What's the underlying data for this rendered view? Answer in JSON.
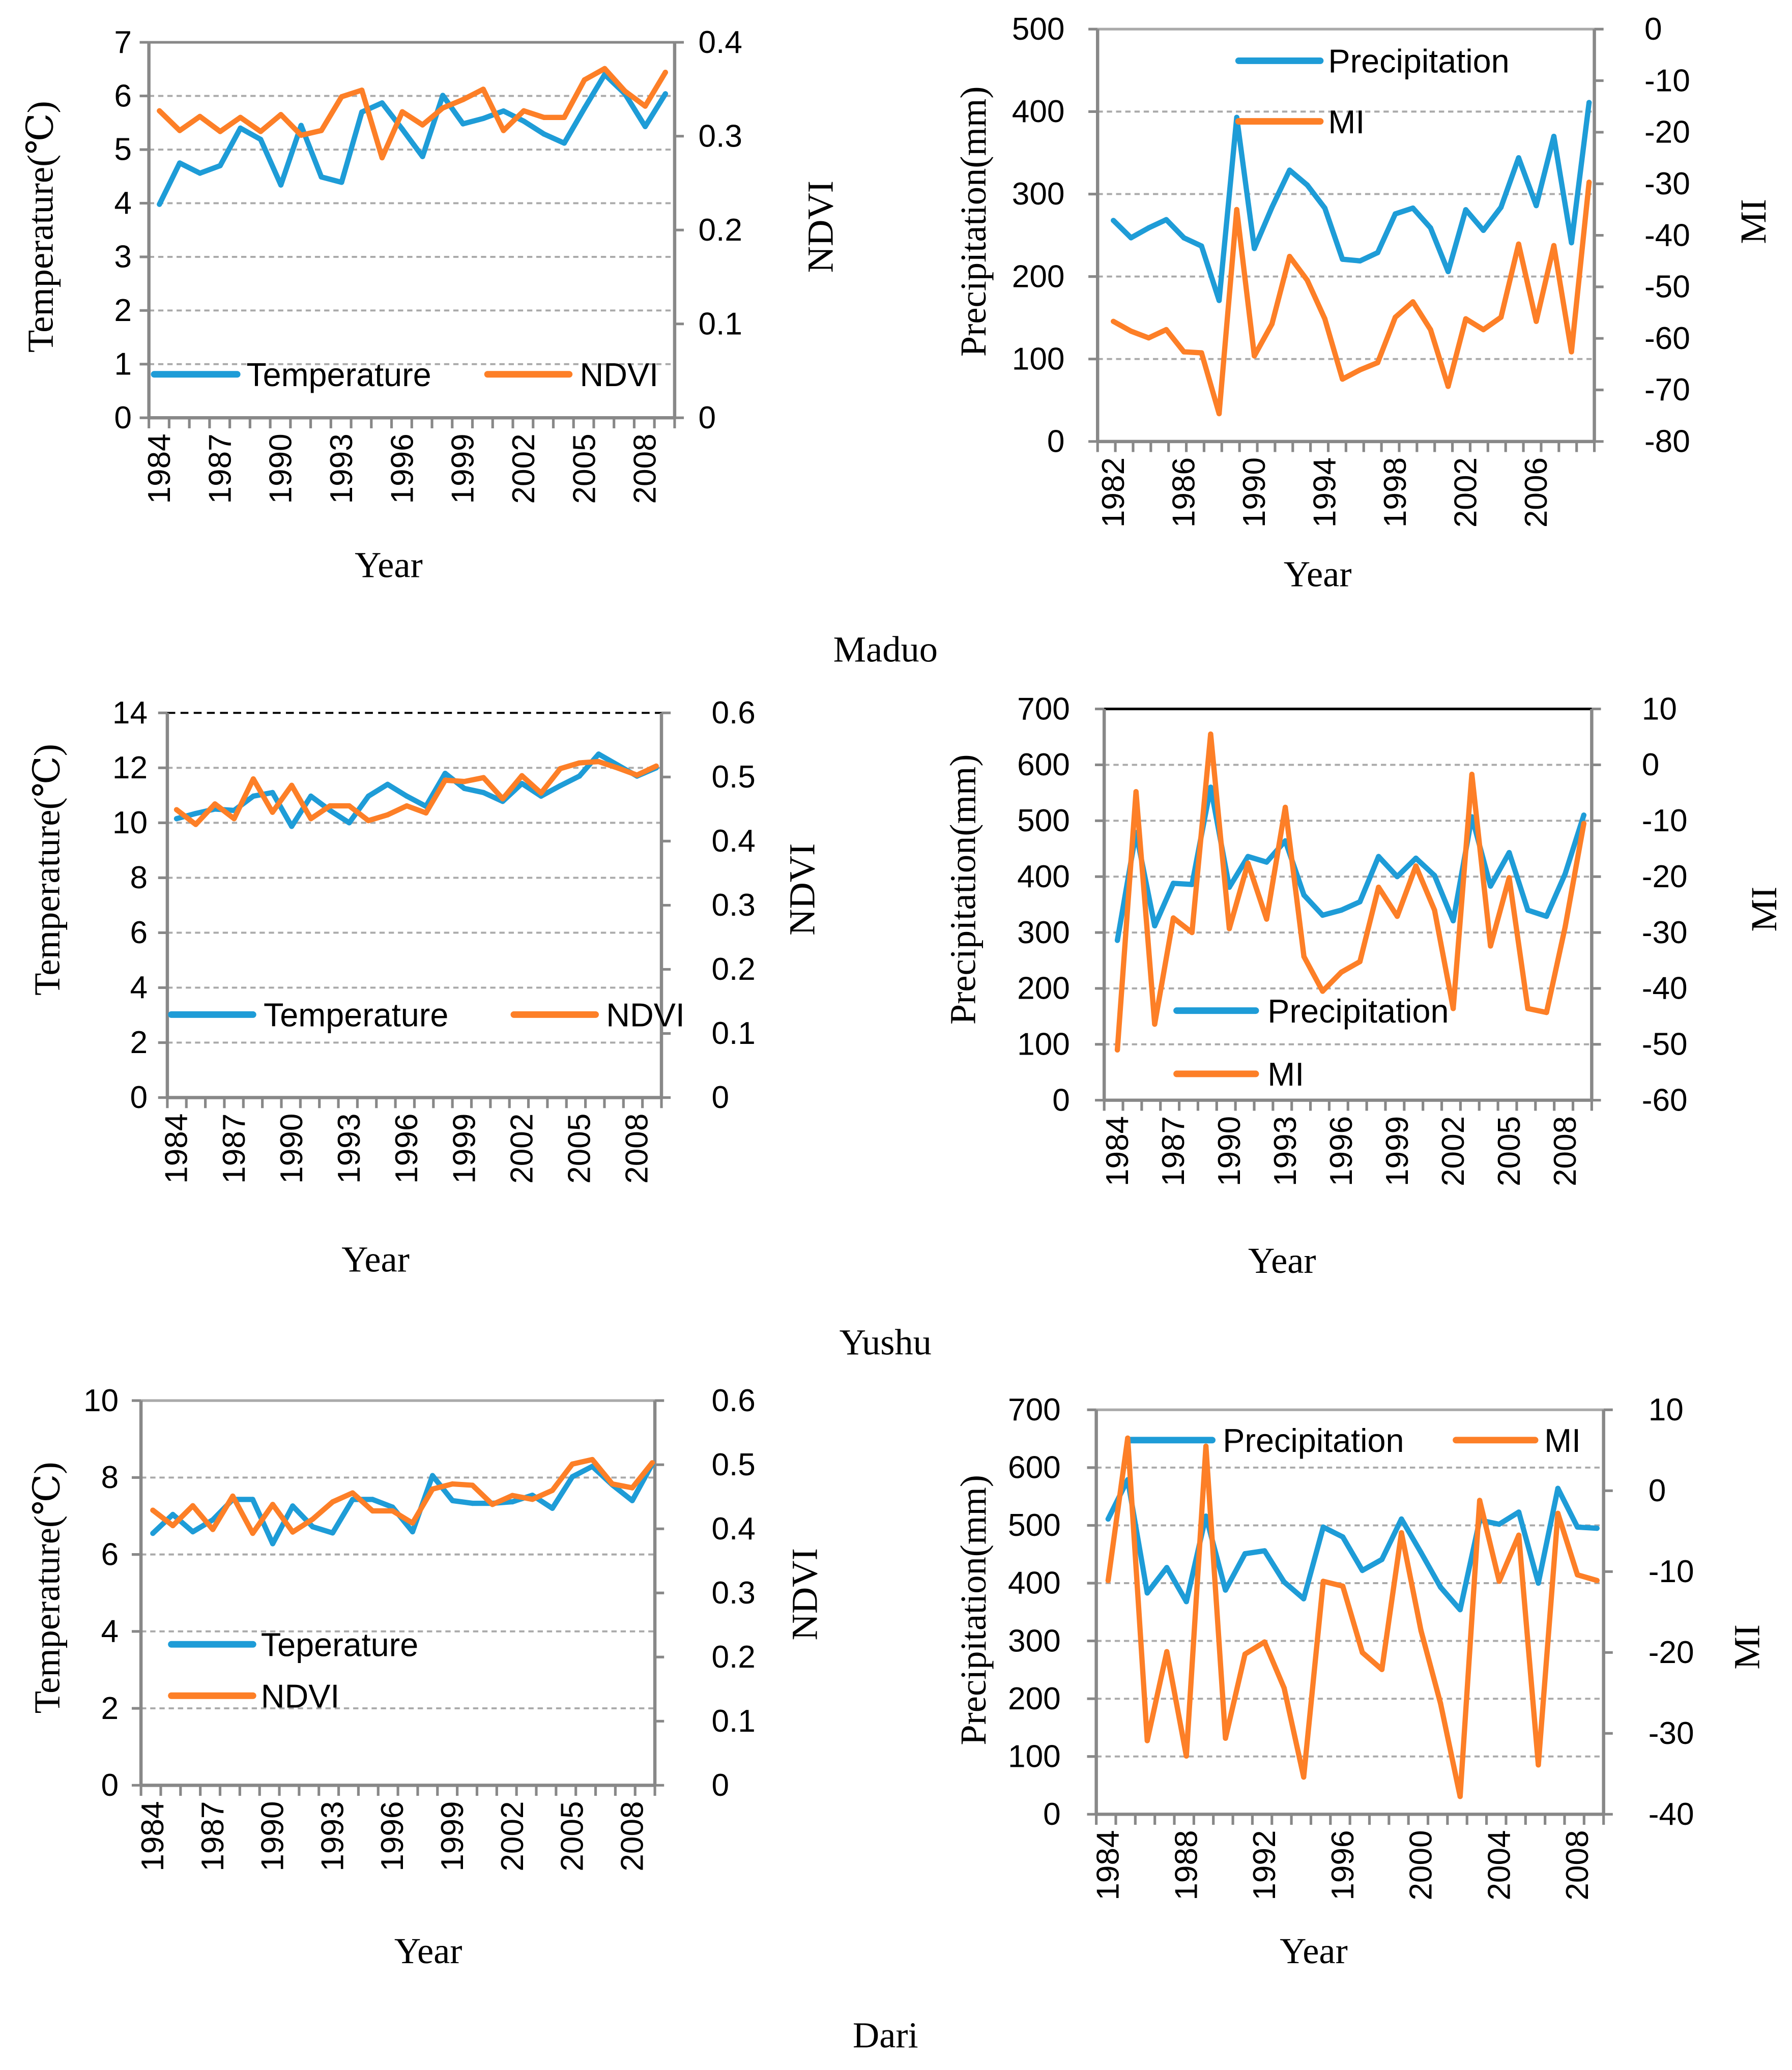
{
  "figure": {
    "captions": [
      "Maduo",
      "Yushu",
      "Dari"
    ]
  },
  "chart_data": [
    {
      "panel": "Maduo",
      "type": "line",
      "x_start": 1984,
      "x_end": 2009,
      "xlabel": "Year",
      "ylabel_left": "Temperature(℃)",
      "ylabel_right": "NDVI",
      "ylim_left": [
        0,
        7
      ],
      "ylim_right": [
        0,
        0.4
      ],
      "grid": true,
      "legend": "bottom",
      "yticks_left": [
        "0",
        "1",
        "2",
        "3",
        "4",
        "5",
        "6",
        "7"
      ],
      "yticks_right": [
        "0",
        "0.1",
        "0.2",
        "0.3",
        "0.4"
      ],
      "xtick_labels": [
        "1984",
        "1987",
        "1990",
        "1993",
        "1996",
        "1999",
        "2002",
        "2005",
        "2008"
      ],
      "series": [
        {
          "name": "Temperature",
          "axis": "left",
          "color": "#1e9cd7",
          "values": [
            3.98,
            4.75,
            4.56,
            4.7,
            5.4,
            5.19,
            4.34,
            5.45,
            4.49,
            4.39,
            5.7,
            5.87,
            5.38,
            4.87,
            6.01,
            5.48,
            5.58,
            5.72,
            5.53,
            5.29,
            5.12,
            5.77,
            6.4,
            6.04,
            5.43,
            6.04
          ]
        },
        {
          "name": "NDVI",
          "axis": "right",
          "color": "#fd7f27",
          "values": [
            0.327,
            0.306,
            0.321,
            0.305,
            0.32,
            0.305,
            0.323,
            0.301,
            0.306,
            0.342,
            0.349,
            0.277,
            0.326,
            0.312,
            0.33,
            0.339,
            0.35,
            0.306,
            0.327,
            0.32,
            0.32,
            0.36,
            0.372,
            0.348,
            0.332,
            0.368
          ]
        }
      ]
    },
    {
      "panel": "Maduo",
      "type": "line",
      "x_start": 1982,
      "x_end": 2009,
      "xlabel": "Year",
      "ylabel_left": "Precipitation(mm)",
      "ylabel_right": "MI",
      "ylim_left": [
        0,
        500
      ],
      "ylim_right": [
        -80,
        0
      ],
      "grid": true,
      "legend": "top",
      "yticks_left": [
        "0",
        "100",
        "200",
        "300",
        "400",
        "500"
      ],
      "yticks_right": [
        "-80",
        "-70",
        "-60",
        "-50",
        "-40",
        "-30",
        "-20",
        "-10",
        "0"
      ],
      "xtick_labels": [
        "1982",
        "1986",
        "1990",
        "1994",
        "1998",
        "2002",
        "2006"
      ],
      "series": [
        {
          "name": "Precipitation",
          "axis": "left",
          "color": "#1e9cd7",
          "values": [
            268,
            247,
            259,
            269,
            247,
            237,
            171,
            393,
            234,
            284,
            329,
            311,
            283,
            221,
            219,
            229,
            276,
            283,
            259,
            206,
            281,
            256,
            284,
            344,
            286,
            370,
            241,
            411
          ]
        },
        {
          "name": "MI",
          "axis": "right",
          "color": "#fd7f27",
          "values": [
            -56.7,
            -58.6,
            -59.9,
            -58.3,
            -62.6,
            -62.8,
            -74.6,
            -35,
            -63.4,
            -57.2,
            -44.1,
            -48.7,
            -56.2,
            -67.9,
            -66.1,
            -64.7,
            -55.9,
            -52.9,
            -58.3,
            -69.3,
            -56.2,
            -58.3,
            -55.9,
            -41.7,
            -56.7,
            -42,
            -62.6,
            -29.7
          ]
        }
      ]
    },
    {
      "panel": "Yushu",
      "type": "line",
      "x_start": 1984,
      "x_end": 2009,
      "xlabel": "Year",
      "ylabel_left": "Temperature(℃)",
      "ylabel_right": "NDVI",
      "ylim_left": [
        0,
        14
      ],
      "ylim_right": [
        0,
        0.6
      ],
      "grid": true,
      "legend": "bottom",
      "yticks_left": [
        "0",
        "2",
        "4",
        "6",
        "8",
        "10",
        "12",
        "14"
      ],
      "yticks_right": [
        "0",
        "0.1",
        "0.2",
        "0.3",
        "0.4",
        "0.5",
        "0.6"
      ],
      "xtick_labels": [
        "1984",
        "1987",
        "1990",
        "1993",
        "1996",
        "1999",
        "2002",
        "2005",
        "2008"
      ],
      "series": [
        {
          "name": "Temperature",
          "axis": "left",
          "color": "#1e9cd7",
          "values": [
            10.15,
            10.34,
            10.5,
            10.45,
            10.97,
            11.1,
            9.87,
            10.97,
            10.45,
            10.0,
            10.97,
            11.4,
            10.97,
            10.6,
            11.8,
            11.25,
            11.1,
            10.78,
            11.43,
            10.97,
            11.35,
            11.7,
            12.5,
            12.1,
            11.7,
            12.0
          ]
        },
        {
          "name": "NDVI",
          "axis": "right",
          "color": "#fd7f27",
          "values": [
            0.449,
            0.426,
            0.458,
            0.435,
            0.497,
            0.445,
            0.487,
            0.435,
            0.455,
            0.455,
            0.432,
            0.441,
            0.455,
            0.444,
            0.495,
            0.493,
            0.499,
            0.466,
            0.502,
            0.475,
            0.513,
            0.522,
            0.524,
            0.514,
            0.503,
            0.517
          ]
        }
      ]
    },
    {
      "panel": "Yushu",
      "type": "line",
      "x_start": 1984,
      "x_end": 2009,
      "xlabel": "Year",
      "ylabel_left": "Precipitation(mm)",
      "ylabel_right": "MI",
      "ylim_left": [
        0,
        700
      ],
      "ylim_right": [
        -60,
        10
      ],
      "grid": true,
      "legend": "bottom",
      "yticks_left": [
        "0",
        "100",
        "200",
        "300",
        "400",
        "500",
        "600",
        "700"
      ],
      "yticks_right": [
        "-60",
        "-50",
        "-40",
        "-30",
        "-20",
        "-10",
        "0",
        "10"
      ],
      "xtick_labels": [
        "1984",
        "1987",
        "1990",
        "1993",
        "1996",
        "1999",
        "2002",
        "2005",
        "2008"
      ],
      "series": [
        {
          "name": "Precipitation",
          "axis": "left",
          "color": "#1e9cd7",
          "values": [
            286,
            479,
            312,
            388,
            386,
            560,
            381,
            436,
            426,
            464,
            367,
            331,
            340,
            355,
            436,
            400,
            433,
            402,
            321,
            507,
            383,
            443,
            340,
            329,
            405,
            510
          ]
        },
        {
          "name": "MI",
          "axis": "right",
          "color": "#fd7f27",
          "values": [
            -51,
            -4.8,
            -46.4,
            -27.4,
            -30,
            5.5,
            -29.3,
            -17.6,
            -27.6,
            -7.6,
            -34.3,
            -40.5,
            -37.1,
            -35.2,
            -21.9,
            -27.1,
            -18.1,
            -26,
            -43.6,
            -1.7,
            -32.4,
            -20.2,
            -43.6,
            -44.3,
            -29,
            -10.5
          ]
        }
      ]
    },
    {
      "panel": "Dari",
      "type": "line",
      "x_start": 1984,
      "x_end": 2009,
      "xlabel": "Year",
      "ylabel_left": "Temperature(℃)",
      "ylabel_right": "NDVI",
      "ylim_left": [
        0,
        10
      ],
      "ylim_right": [
        0,
        0.6
      ],
      "grid": true,
      "legend": "left",
      "yticks_left": [
        "0",
        "2",
        "4",
        "6",
        "8",
        "10"
      ],
      "yticks_right": [
        "0",
        "0.1",
        "0.2",
        "0.3",
        "0.4",
        "0.5",
        "0.6"
      ],
      "xtick_labels": [
        "1984",
        "1987",
        "1990",
        "1993",
        "1996",
        "1999",
        "2002",
        "2005",
        "2008"
      ],
      "series": [
        {
          "name": "Teperature",
          "axis": "left",
          "color": "#1e9cd7",
          "values": [
            6.55,
            7.04,
            6.59,
            6.9,
            7.43,
            7.43,
            6.28,
            7.26,
            6.72,
            6.56,
            7.43,
            7.43,
            7.23,
            6.59,
            8.05,
            7.4,
            7.33,
            7.33,
            7.37,
            7.54,
            7.2,
            8.02,
            8.29,
            7.81,
            7.4,
            8.35
          ]
        },
        {
          "name": "NDVI",
          "axis": "right",
          "color": "#fd7f27",
          "values": [
            0.429,
            0.405,
            0.436,
            0.399,
            0.451,
            0.393,
            0.438,
            0.395,
            0.415,
            0.442,
            0.456,
            0.428,
            0.428,
            0.409,
            0.462,
            0.47,
            0.468,
            0.438,
            0.452,
            0.446,
            0.46,
            0.501,
            0.508,
            0.47,
            0.464,
            0.503
          ]
        }
      ]
    },
    {
      "panel": "Dari",
      "type": "line",
      "x_start": 1984,
      "x_end": 2009,
      "xlabel": "Year",
      "ylabel_left": "Precipitation(mm)",
      "ylabel_right": "MI",
      "ylim_left": [
        0,
        700
      ],
      "ylim_right": [
        -40,
        10
      ],
      "grid": true,
      "legend": "top",
      "yticks_left": [
        "0",
        "100",
        "200",
        "300",
        "400",
        "500",
        "600",
        "700"
      ],
      "yticks_right": [
        "-40",
        "-30",
        "-20",
        "-10",
        "0",
        "10"
      ],
      "xtick_labels": [
        "1984",
        "1988",
        "1992",
        "1996",
        "2000",
        "2004",
        "2008"
      ],
      "series": [
        {
          "name": "Precipitation",
          "axis": "left",
          "color": "#1e9cd7",
          "values": [
            511,
            579,
            383,
            427,
            368,
            516,
            388,
            451,
            456,
            402,
            373,
            497,
            480,
            422,
            441,
            511,
            453,
            393,
            354,
            509,
            502,
            523,
            400,
            564,
            497,
            495
          ]
        },
        {
          "name": "MI",
          "axis": "right",
          "color": "#fd7f27",
          "values": [
            -11.1,
            6.5,
            -30.9,
            -19.9,
            -32.8,
            5.5,
            -30.6,
            -20.2,
            -18.7,
            -24.4,
            -35.4,
            -11.2,
            -11.8,
            -20,
            -22.1,
            -5.2,
            -17.3,
            -26.3,
            -37.8,
            -1.2,
            -11.2,
            -5.5,
            -33.9,
            -2.8,
            -10.4,
            -11.1
          ]
        }
      ]
    }
  ]
}
